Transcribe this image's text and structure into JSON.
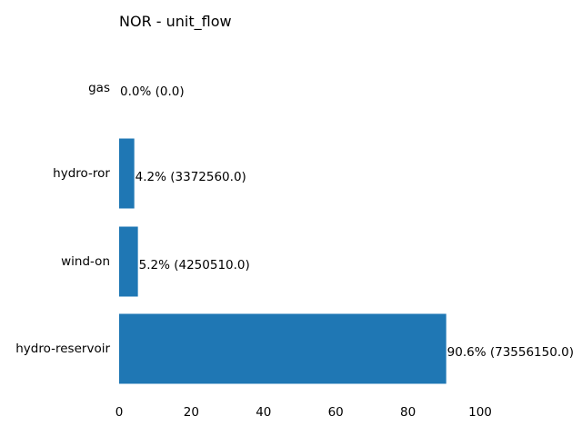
{
  "chart_data": {
    "type": "bar",
    "orientation": "horizontal",
    "title": "NOR - unit_flow",
    "xlabel": "",
    "ylabel": "",
    "xlim": [
      0,
      100
    ],
    "xticks": [
      0,
      20,
      40,
      60,
      80,
      100
    ],
    "grid": false,
    "bar_color": "#1f77b4",
    "categories": [
      "gas",
      "hydro-ror",
      "wind-on",
      "hydro-reservoir"
    ],
    "values": [
      0.0,
      4.2,
      5.2,
      90.6
    ],
    "labels": [
      "0.0% (0.0)",
      "4.2% (3372560.0)",
      "5.2% (4250510.0)",
      "90.6% (73556150.0)"
    ]
  }
}
